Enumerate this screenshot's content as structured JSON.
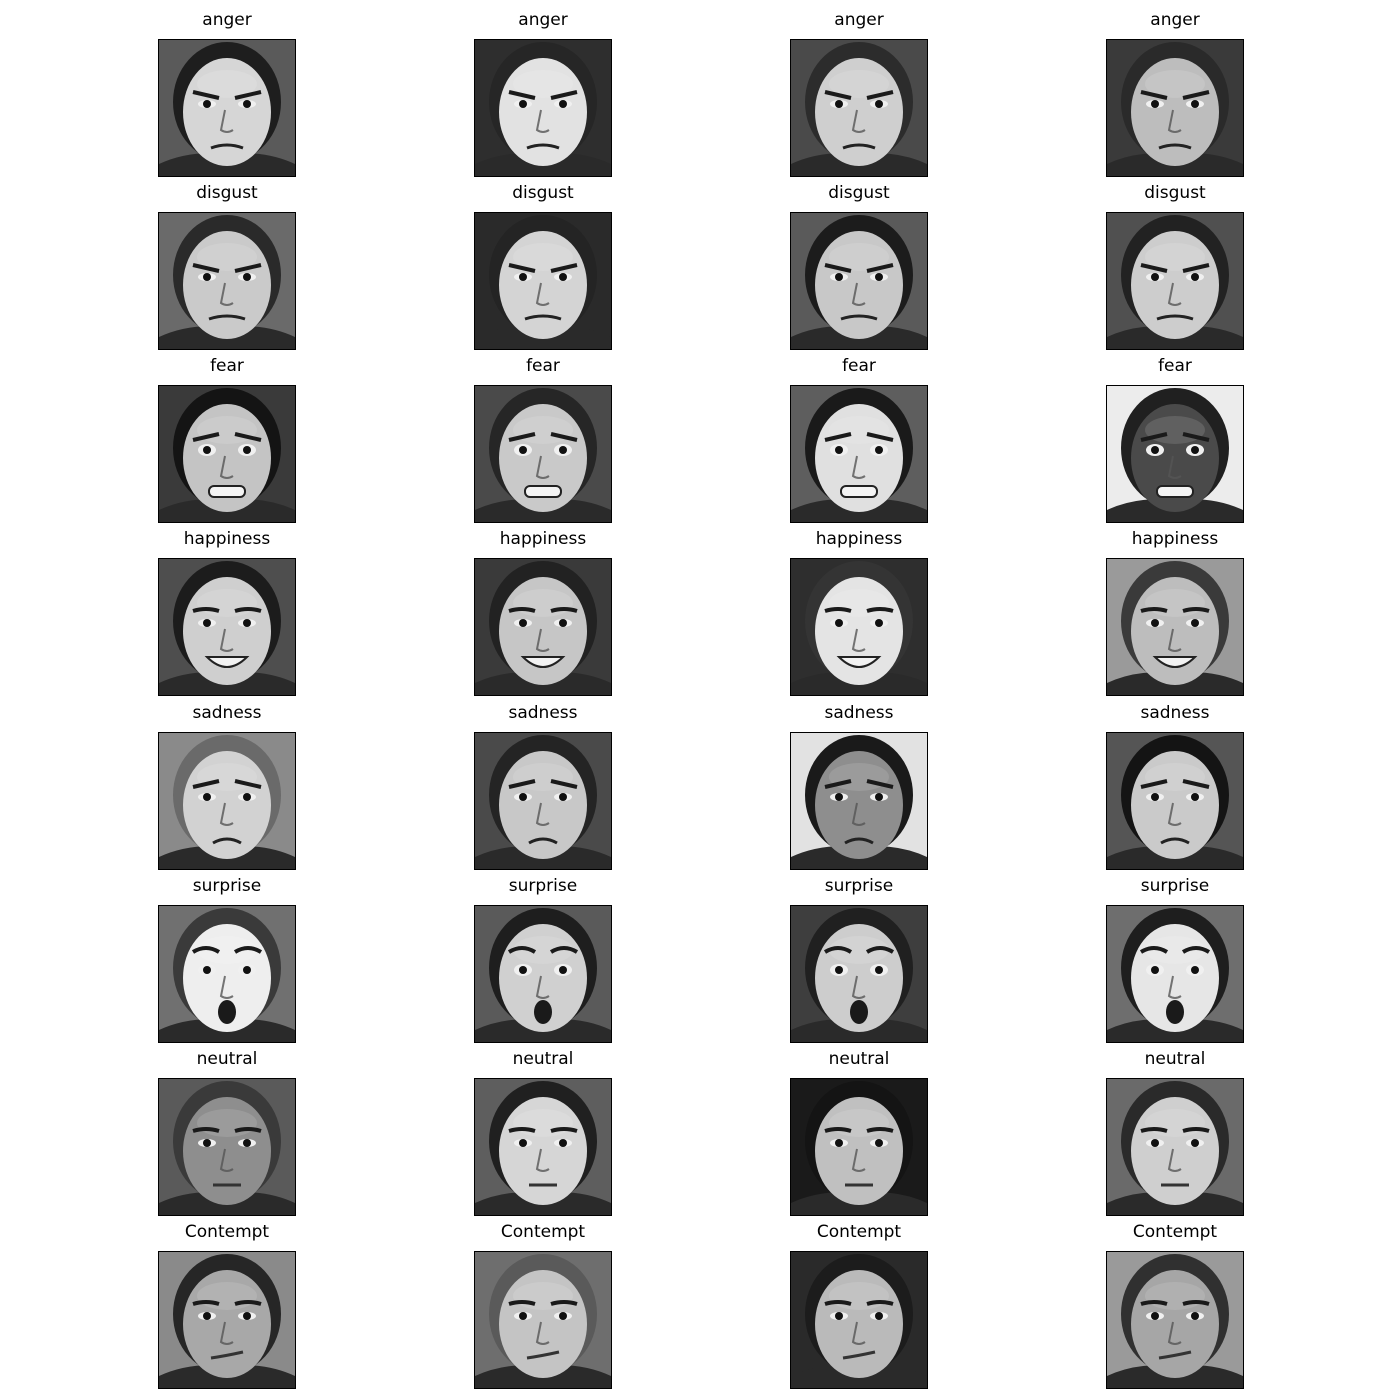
{
  "figure": {
    "rows": [
      {
        "label": "anger",
        "panels": [
          {
            "label": "anger",
            "bg": "#5a5a5a",
            "skin": "#d6d6d6",
            "hair": "#1e1e1e",
            "light_bg": false
          },
          {
            "label": "anger",
            "bg": "#2e2e2e",
            "skin": "#e2e2e2",
            "hair": "#262626",
            "light_bg": false
          },
          {
            "label": "anger",
            "bg": "#4a4a4a",
            "skin": "#cfcfcf",
            "hair": "#2c2c2c",
            "light_bg": false
          },
          {
            "label": "anger",
            "bg": "#3a3a3a",
            "skin": "#bdbdbd",
            "hair": "#2a2a2a",
            "light_bg": false
          }
        ]
      },
      {
        "label": "disgust",
        "panels": [
          {
            "label": "disgust",
            "bg": "#6a6a6a",
            "skin": "#cacaca",
            "hair": "#2a2a2a",
            "light_bg": false
          },
          {
            "label": "disgust",
            "bg": "#2a2a2a",
            "skin": "#d4d4d4",
            "hair": "#242424",
            "light_bg": false
          },
          {
            "label": "disgust",
            "bg": "#5a5a5a",
            "skin": "#c8c8c8",
            "hair": "#1c1c1c",
            "light_bg": false
          },
          {
            "label": "disgust",
            "bg": "#505050",
            "skin": "#cdcdcd",
            "hair": "#222222",
            "light_bg": false
          }
        ]
      },
      {
        "label": "fear",
        "panels": [
          {
            "label": "fear",
            "bg": "#3a3a3a",
            "skin": "#c4c4c4",
            "hair": "#141414",
            "light_bg": false
          },
          {
            "label": "fear",
            "bg": "#4a4a4a",
            "skin": "#c9c9c9",
            "hair": "#262626",
            "light_bg": false
          },
          {
            "label": "fear",
            "bg": "#5e5e5e",
            "skin": "#e0e0e0",
            "hair": "#1a1a1a",
            "light_bg": false
          },
          {
            "label": "fear",
            "bg": "#ececec",
            "skin": "#4a4a4a",
            "hair": "#202020",
            "light_bg": true
          }
        ]
      },
      {
        "label": "happiness",
        "panels": [
          {
            "label": "happiness",
            "bg": "#4e4e4e",
            "skin": "#cfcfcf",
            "hair": "#1c1c1c",
            "light_bg": false
          },
          {
            "label": "happiness",
            "bg": "#3a3a3a",
            "skin": "#c6c6c6",
            "hair": "#222222",
            "light_bg": false
          },
          {
            "label": "happiness",
            "bg": "#2e2e2e",
            "skin": "#e4e4e4",
            "hair": "#343434",
            "light_bg": false
          },
          {
            "label": "happiness",
            "bg": "#9a9a9a",
            "skin": "#bdbdbd",
            "hair": "#3a3a3a",
            "light_bg": false
          }
        ]
      },
      {
        "label": "sadness",
        "panels": [
          {
            "label": "sadness",
            "bg": "#8a8a8a",
            "skin": "#d2d2d2",
            "hair": "#6a6a6a",
            "light_bg": false
          },
          {
            "label": "sadness",
            "bg": "#4a4a4a",
            "skin": "#c8c8c8",
            "hair": "#242424",
            "light_bg": false
          },
          {
            "label": "sadness",
            "bg": "#e2e2e2",
            "skin": "#8e8e8e",
            "hair": "#1a1a1a",
            "light_bg": true
          },
          {
            "label": "sadness",
            "bg": "#555555",
            "skin": "#cacaca",
            "hair": "#141414",
            "light_bg": false
          }
        ]
      },
      {
        "label": "surprise",
        "panels": [
          {
            "label": "surprise",
            "bg": "#707070",
            "skin": "#eeeeee",
            "hair": "#3a3a3a",
            "light_bg": false
          },
          {
            "label": "surprise",
            "bg": "#5a5a5a",
            "skin": "#d0d0d0",
            "hair": "#1e1e1e",
            "light_bg": false
          },
          {
            "label": "surprise",
            "bg": "#3e3e3e",
            "skin": "#cdcdcd",
            "hair": "#202020",
            "light_bg": false
          },
          {
            "label": "surprise",
            "bg": "#6e6e6e",
            "skin": "#e6e6e6",
            "hair": "#1e1e1e",
            "light_bg": false
          }
        ]
      },
      {
        "label": "neutral",
        "panels": [
          {
            "label": "neutral",
            "bg": "#5a5a5a",
            "skin": "#8e8e8e",
            "hair": "#3a3a3a",
            "light_bg": false
          },
          {
            "label": "neutral",
            "bg": "#5e5e5e",
            "skin": "#d6d6d6",
            "hair": "#202020",
            "light_bg": false
          },
          {
            "label": "neutral",
            "bg": "#1a1a1a",
            "skin": "#c0c0c0",
            "hair": "#141414",
            "light_bg": false
          },
          {
            "label": "neutral",
            "bg": "#6a6a6a",
            "skin": "#cfcfcf",
            "hair": "#2a2a2a",
            "light_bg": false
          }
        ]
      },
      {
        "label": "Contempt",
        "panels": [
          {
            "label": "Contempt",
            "bg": "#8a8a8a",
            "skin": "#a8a8a8",
            "hair": "#262626",
            "light_bg": false
          },
          {
            "label": "Contempt",
            "bg": "#6e6e6e",
            "skin": "#c4c4c4",
            "hair": "#5a5a5a",
            "light_bg": false
          },
          {
            "label": "Contempt",
            "bg": "#2a2a2a",
            "skin": "#bababa",
            "hair": "#1c1c1c",
            "light_bg": false
          },
          {
            "label": "Contempt",
            "bg": "#9a9a9a",
            "skin": "#a6a6a6",
            "hair": "#303030",
            "light_bg": false
          }
        ]
      }
    ]
  }
}
